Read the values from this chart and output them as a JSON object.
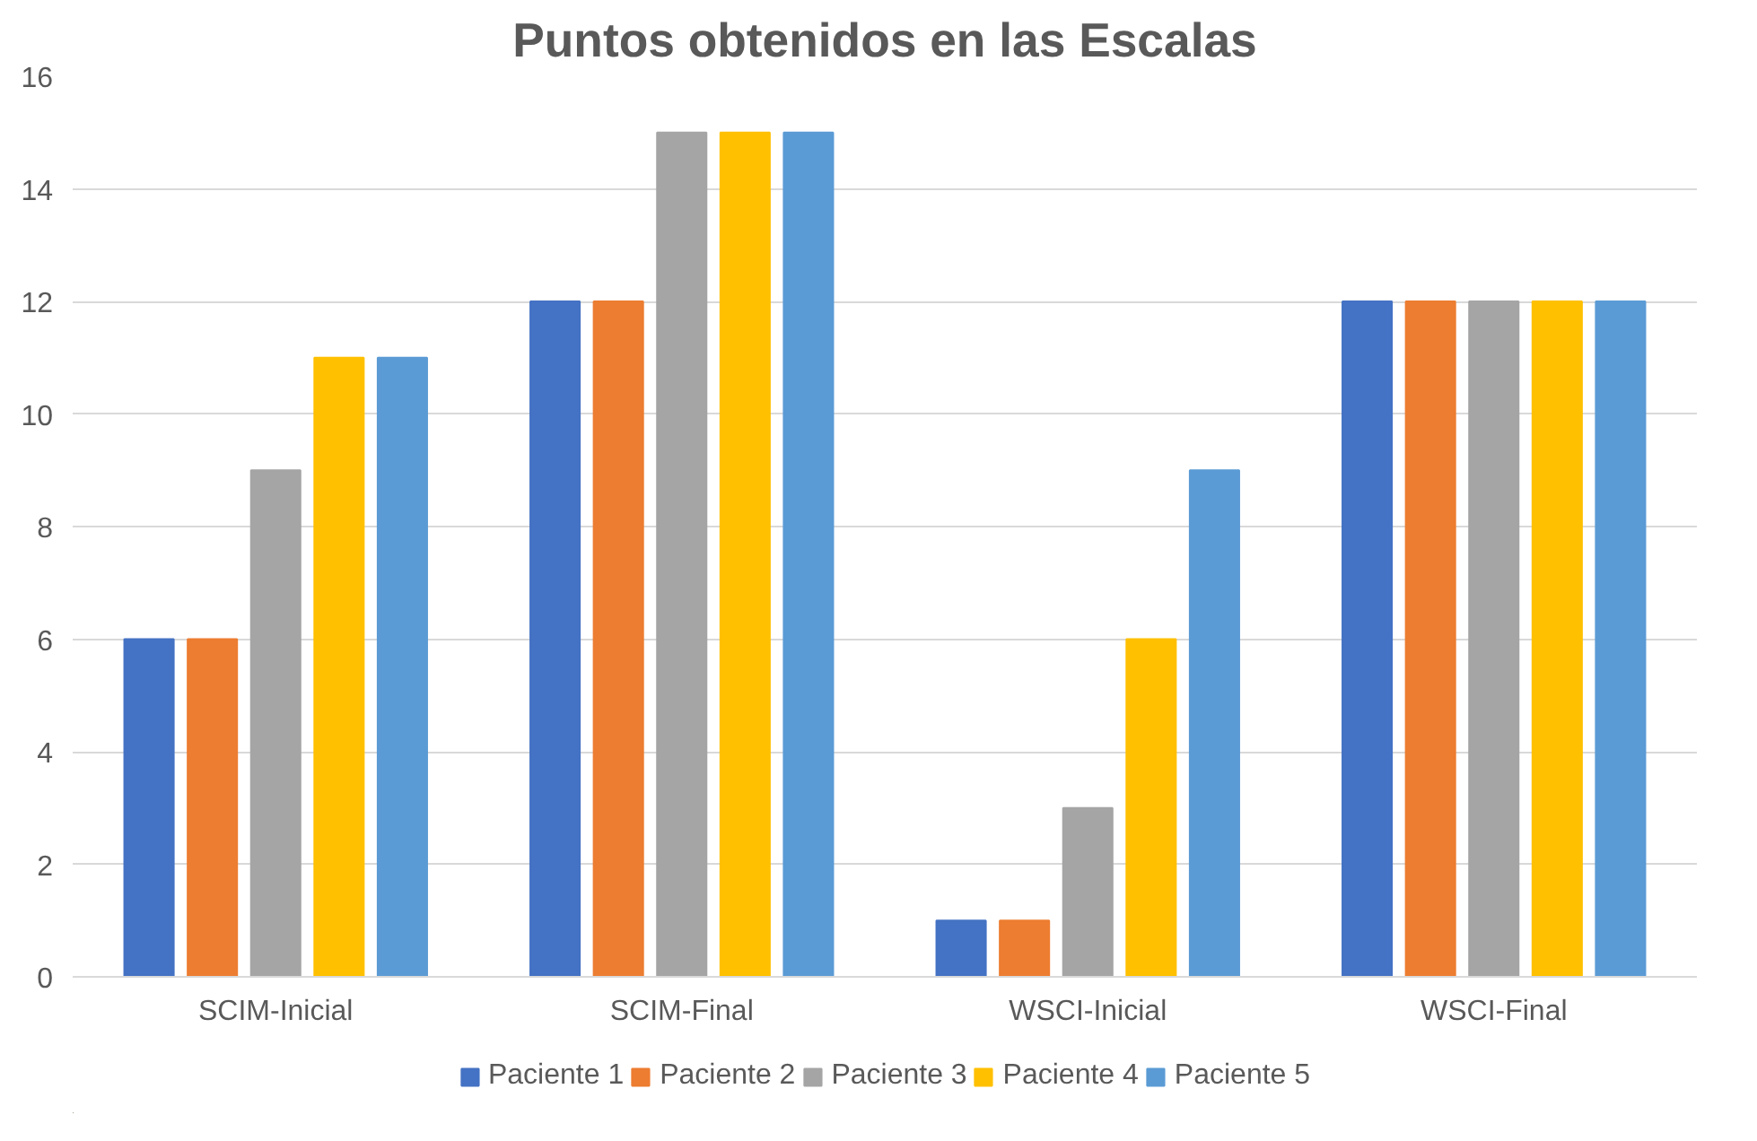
{
  "chart_data": {
    "type": "bar",
    "title": "Puntos obtenidos en las Escalas",
    "categories": [
      "SCIM-Inicial",
      "SCIM-Final",
      "WSCI-Inicial",
      "WSCI-Final"
    ],
    "series": [
      {
        "name": "Paciente 1",
        "color": "#4472c4",
        "values": [
          6,
          12,
          1,
          12
        ]
      },
      {
        "name": "Paciente 2",
        "color": "#ed7d31",
        "values": [
          6,
          12,
          1,
          12
        ]
      },
      {
        "name": "Paciente 3",
        "color": "#a5a5a5",
        "values": [
          9,
          15,
          3,
          12
        ]
      },
      {
        "name": "Paciente 4",
        "color": "#ffc000",
        "values": [
          11,
          15,
          6,
          12
        ]
      },
      {
        "name": "Paciente 5",
        "color": "#5b9bd5",
        "values": [
          11,
          15,
          9,
          12
        ]
      }
    ],
    "ylim": [
      0,
      16
    ],
    "yticks": [
      0,
      2,
      4,
      6,
      8,
      10,
      12,
      14,
      16
    ],
    "grid": "y",
    "legend": "bottom"
  }
}
